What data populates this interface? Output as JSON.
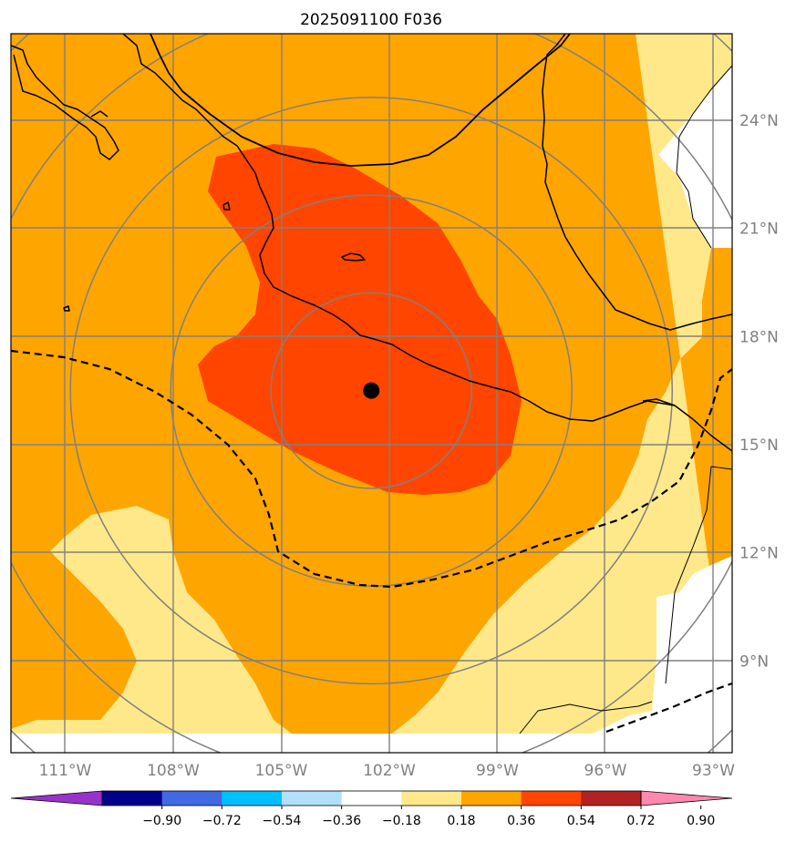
{
  "title": "2025091100 F036",
  "x_ticks": [
    {
      "label": "111°W",
      "lon": -111
    },
    {
      "label": "108°W",
      "lon": -108
    },
    {
      "label": "105°W",
      "lon": -105
    },
    {
      "label": "102°W",
      "lon": -102
    },
    {
      "label": "99°W",
      "lon": -99
    },
    {
      "label": "96°W",
      "lon": -96
    },
    {
      "label": "93°W",
      "lon": -93
    }
  ],
  "y_ticks": [
    {
      "label": "24°N",
      "lat": 24
    },
    {
      "label": "21°N",
      "lat": 21
    },
    {
      "label": "18°N",
      "lat": 18
    },
    {
      "label": "15°N",
      "lat": 15
    },
    {
      "label": "12°N",
      "lat": 12
    },
    {
      "label": "9°N",
      "lat": 9
    }
  ],
  "storm_center": {
    "lon": -102.5,
    "lat": 16.5
  },
  "range_rings": [
    {
      "ring": 1
    },
    {
      "ring": 2
    },
    {
      "ring": 3
    },
    {
      "ring": 4
    },
    {
      "ring": 5
    }
  ],
  "colorbar": {
    "colors": [
      "#9932cc",
      "#00008b",
      "#4169e1",
      "#00bfff",
      "#b0e0fa",
      "#ffffff",
      "#ffe88a",
      "#ffa500",
      "#ff4500",
      "#b22222",
      "#ff88b0"
    ],
    "bounds": [
      "−0.90",
      "−0.72",
      "−0.54",
      "−0.36",
      "−0.18",
      "0.18",
      "0.36",
      "0.54",
      "0.72",
      "0.90"
    ],
    "extend": "both"
  },
  "field_colors": {
    "band_0_18_0_36": "#ffe88a",
    "band_0_36_0_54": "#ffa500",
    "band_0_54_0_72": "#ff4500",
    "missing": "#ffffff",
    "coastline": "#000000",
    "grid": "#808080",
    "dashed_contour": "#000000"
  }
}
